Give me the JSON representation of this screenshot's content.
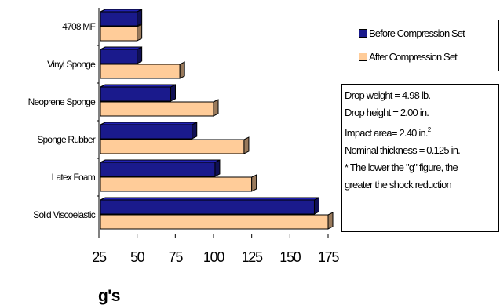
{
  "chart_data": {
    "type": "bar",
    "orientation": "horizontal",
    "categories": [
      "4708 MF",
      "Vinyl Sponge",
      "Neoprene Sponge",
      "Sponge Rubber",
      "Latex Foam",
      "Solid Viscoelastic"
    ],
    "series": [
      {
        "name": "Before Compression Set",
        "color": "#1a1a8c",
        "values": [
          50,
          50,
          72,
          86,
          101,
          166
        ]
      },
      {
        "name": "After Compression Set",
        "color": "#ffcc99",
        "values": [
          50,
          78,
          100,
          120,
          125,
          175
        ]
      }
    ],
    "xlabel": "g's",
    "xlim": [
      25,
      175
    ],
    "xticks": [
      25,
      50,
      75,
      100,
      125,
      150,
      175
    ],
    "legend_position": "right",
    "bar_style": "3d"
  },
  "annotation": {
    "drop_weight": "Drop weight = 4.98 lb.",
    "drop_height": "Drop height = 2.00 in.",
    "impact_area": "Impact area= 2.40 in.",
    "impact_area_exp": "2",
    "nominal_thickness": "Nominal thickness = 0.125 in.",
    "note_line1": "* The lower the \"g\" figure, the",
    "note_line2": "greater the shock reduction"
  }
}
